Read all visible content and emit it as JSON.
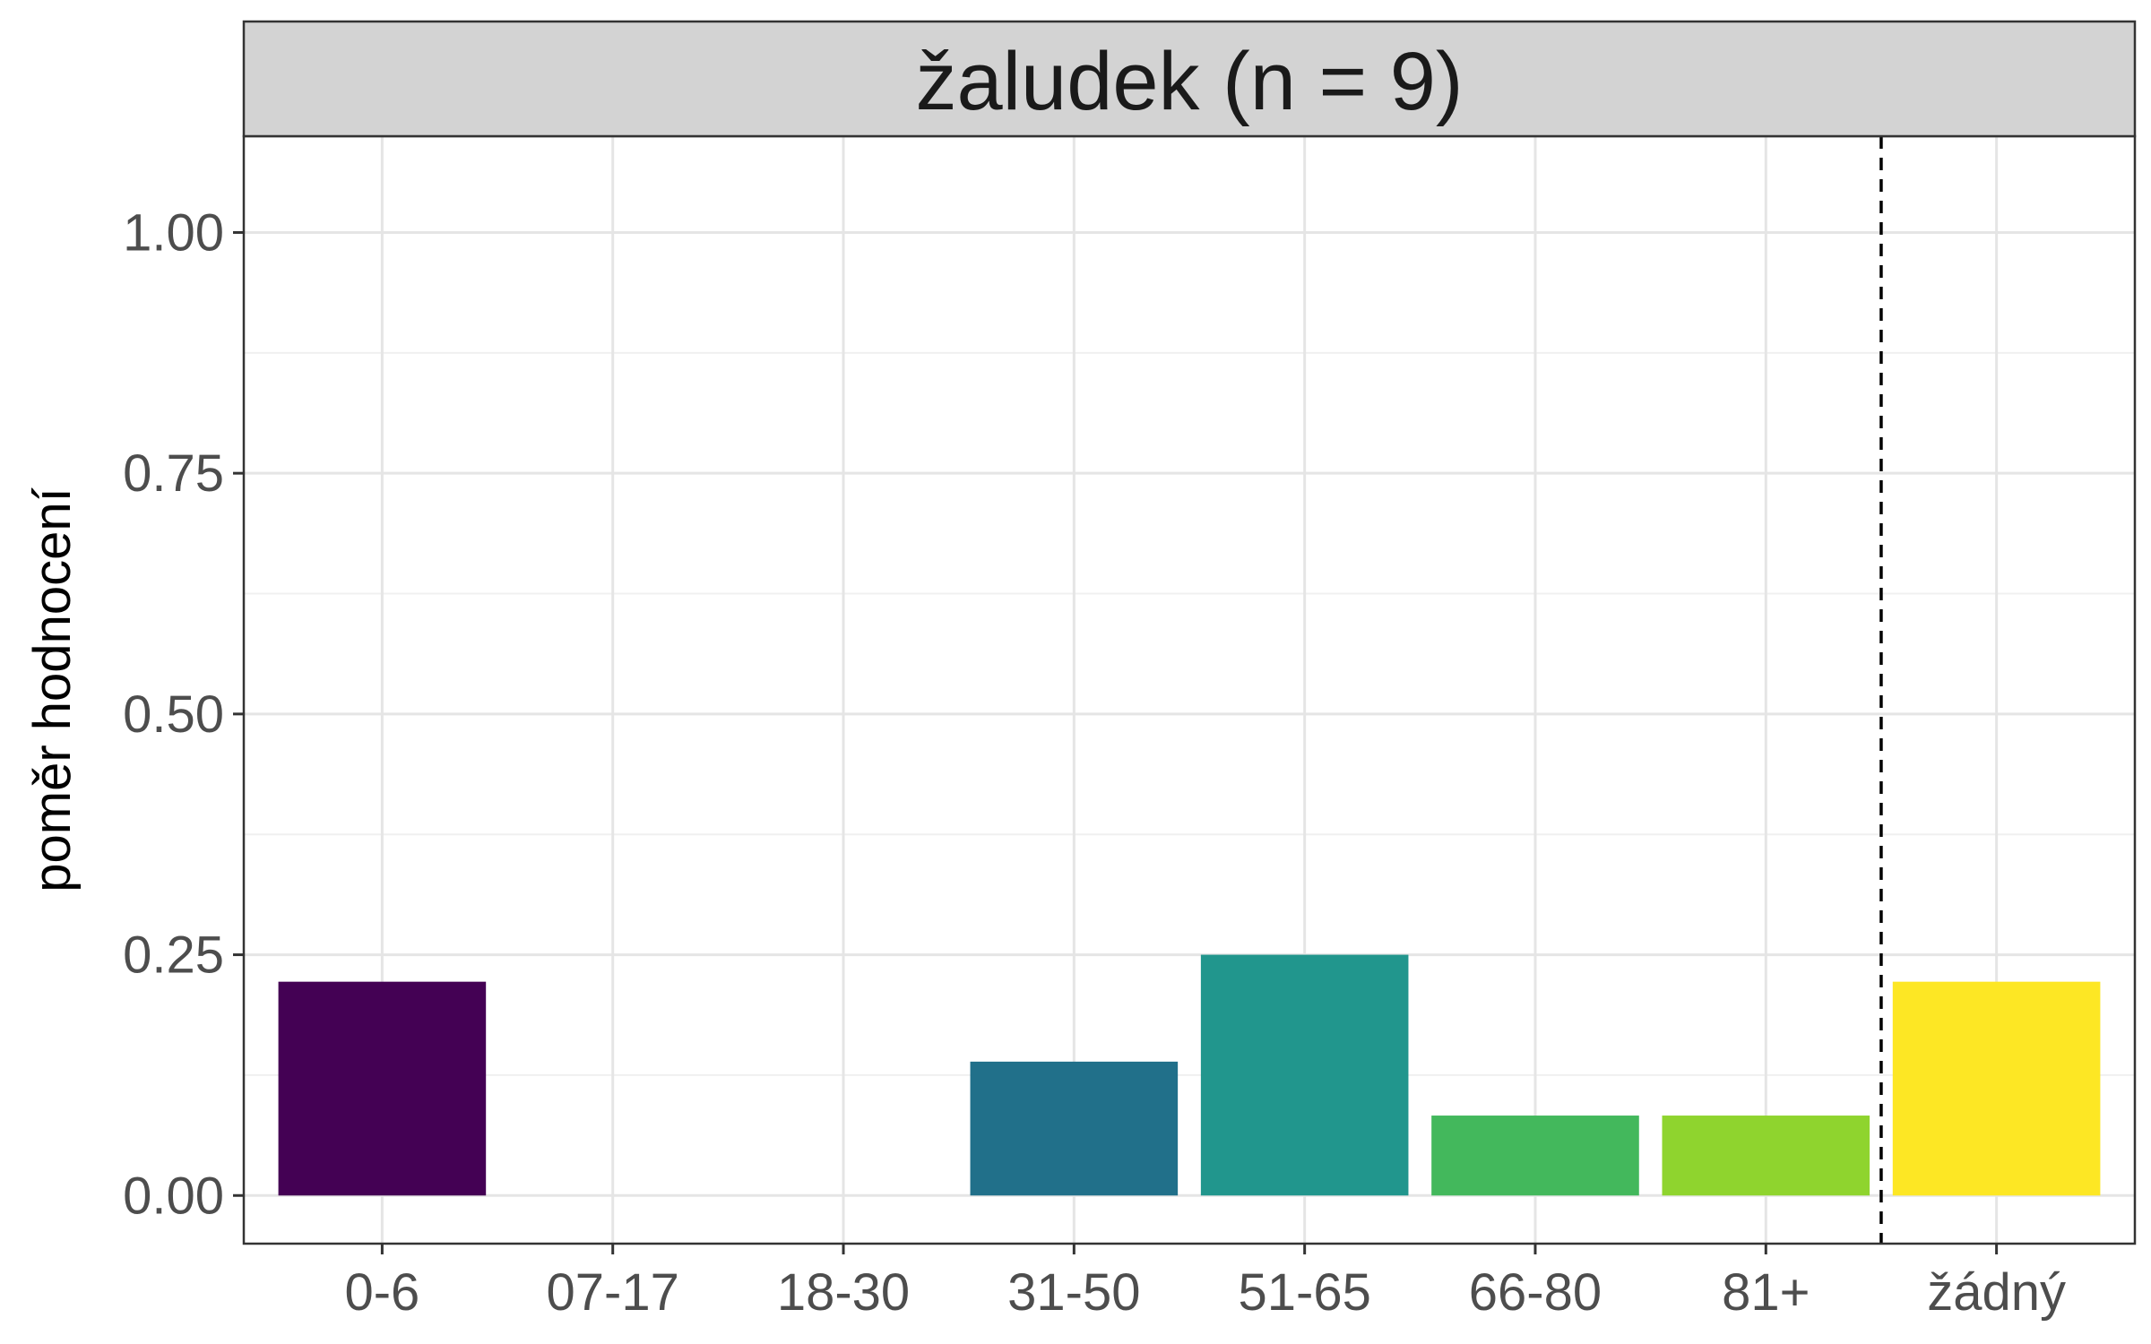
{
  "chart_data": {
    "type": "bar",
    "title": "žaludek (n = 9)",
    "xlabel": "",
    "ylabel": "poměr hodnocení",
    "categories": [
      "0-6",
      "07-17",
      "18-30",
      "31-50",
      "51-65",
      "66-80",
      "81+",
      "žádný"
    ],
    "values": [
      0.222,
      0,
      0,
      0.139,
      0.25,
      0.083,
      0.083,
      0.222
    ],
    "colors": [
      "#440154",
      "#46327e",
      "#365c8d",
      "#21708a",
      "#21968d",
      "#43b85c",
      "#8fd42e",
      "#fde724"
    ],
    "ylim": [
      -0.05,
      1.1
    ],
    "yticks": [
      0,
      0.25,
      0.5,
      0.75,
      1
    ],
    "ytick_labels": [
      "0.00",
      "0.25",
      "0.50",
      "0.75",
      "1.00"
    ],
    "grid": true,
    "reference_line": {
      "position": "between 81+ and žádný",
      "style": "dashed"
    }
  }
}
